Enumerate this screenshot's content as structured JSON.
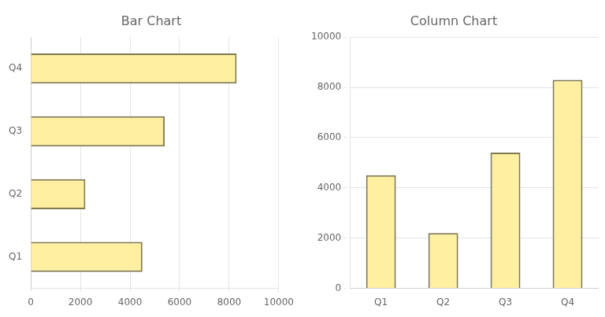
{
  "chart_data": [
    {
      "type": "bar",
      "title": "Bar Chart",
      "orientation": "horizontal",
      "categories": [
        "Q1",
        "Q2",
        "Q3",
        "Q4"
      ],
      "values": [
        4500,
        2200,
        5400,
        8300
      ],
      "color": "#FEF0A0",
      "xlim": [
        0,
        10000
      ],
      "xticks": [
        0,
        2000,
        4000,
        6000,
        8000,
        10000
      ],
      "grid": true
    },
    {
      "type": "bar",
      "title": "Column Chart",
      "categories": [
        "Q1",
        "Q2",
        "Q3",
        "Q4"
      ],
      "values": [
        4500,
        2200,
        5400,
        8300
      ],
      "color": "#FEF0A0",
      "ylim": [
        0,
        10000
      ],
      "yticks": [
        0,
        2000,
        4000,
        6000,
        8000,
        10000
      ],
      "grid": true
    }
  ]
}
